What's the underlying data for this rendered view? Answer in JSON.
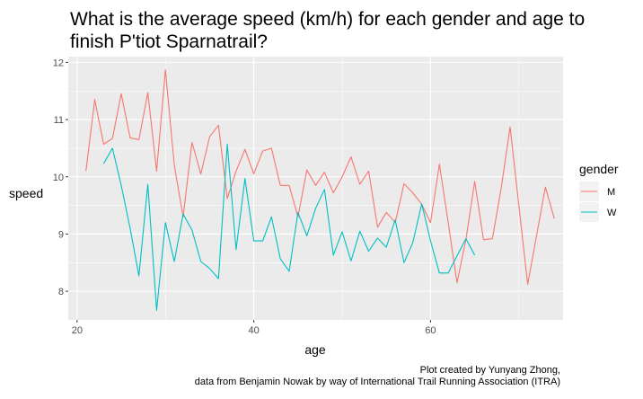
{
  "chart_data": {
    "type": "line",
    "title_lines": [
      "What is the average speed (km/h) for each gender and age to",
      "finish P'tiot Sparnatrail?"
    ],
    "xlabel": "age",
    "ylabel": "speed",
    "xlim": [
      19,
      75
    ],
    "ylim": [
      7.5,
      12.1
    ],
    "x_ticks": [
      20,
      40,
      60
    ],
    "y_ticks": [
      8,
      9,
      10,
      11,
      12
    ],
    "grid": true,
    "legend": {
      "title": "gender",
      "position": "right",
      "entries": [
        {
          "label": "M",
          "color": "#F8766D"
        },
        {
          "label": "W",
          "color": "#00BFC4"
        }
      ]
    },
    "series": [
      {
        "name": "M",
        "color": "#F8766D",
        "points": [
          [
            21,
            10.1
          ],
          [
            22,
            11.35
          ],
          [
            23,
            10.57
          ],
          [
            24,
            10.67
          ],
          [
            25,
            11.45
          ],
          [
            26,
            10.68
          ],
          [
            27,
            10.65
          ],
          [
            28,
            11.47
          ],
          [
            29,
            10.1
          ],
          [
            30,
            11.87
          ],
          [
            31,
            10.2
          ],
          [
            32,
            9.3
          ],
          [
            33,
            10.6
          ],
          [
            34,
            10.05
          ],
          [
            35,
            10.7
          ],
          [
            36,
            10.9
          ],
          [
            37,
            9.62
          ],
          [
            38,
            10.1
          ],
          [
            39,
            10.48
          ],
          [
            40,
            10.05
          ],
          [
            41,
            10.45
          ],
          [
            42,
            10.5
          ],
          [
            43,
            9.85
          ],
          [
            44,
            9.85
          ],
          [
            45,
            9.3
          ],
          [
            46,
            10.12
          ],
          [
            47,
            9.85
          ],
          [
            48,
            10.08
          ],
          [
            49,
            9.72
          ],
          [
            50,
            10.0
          ],
          [
            51,
            10.35
          ],
          [
            52,
            9.87
          ],
          [
            53,
            10.1
          ],
          [
            54,
            9.12
          ],
          [
            55,
            9.38
          ],
          [
            56,
            9.2
          ],
          [
            57,
            9.88
          ],
          [
            58,
            9.72
          ],
          [
            59,
            9.52
          ],
          [
            60,
            9.2
          ],
          [
            61,
            10.22
          ],
          [
            62,
            9.2
          ],
          [
            63,
            8.15
          ],
          [
            64,
            8.9
          ],
          [
            65,
            9.92
          ],
          [
            66,
            8.9
          ],
          [
            67,
            8.92
          ],
          [
            68,
            9.8
          ],
          [
            69,
            10.87
          ],
          [
            71,
            8.12
          ],
          [
            73,
            9.82
          ],
          [
            74,
            9.27
          ]
        ]
      },
      {
        "name": "W",
        "color": "#00BFC4",
        "points": [
          [
            23,
            10.23
          ],
          [
            24,
            10.5
          ],
          [
            25,
            9.85
          ],
          [
            26,
            9.1
          ],
          [
            27,
            8.27
          ],
          [
            28,
            9.87
          ],
          [
            29,
            7.67
          ],
          [
            30,
            9.2
          ],
          [
            31,
            8.52
          ],
          [
            32,
            9.35
          ],
          [
            33,
            9.07
          ],
          [
            34,
            8.52
          ],
          [
            35,
            8.4
          ],
          [
            36,
            8.22
          ],
          [
            37,
            10.57
          ],
          [
            38,
            8.73
          ],
          [
            39,
            9.97
          ],
          [
            40,
            8.88
          ],
          [
            41,
            8.88
          ],
          [
            42,
            9.3
          ],
          [
            43,
            8.57
          ],
          [
            44,
            8.35
          ],
          [
            45,
            9.38
          ],
          [
            46,
            8.97
          ],
          [
            47,
            9.45
          ],
          [
            48,
            9.78
          ],
          [
            49,
            8.63
          ],
          [
            50,
            9.04
          ],
          [
            51,
            8.53
          ],
          [
            52,
            9.05
          ],
          [
            53,
            8.7
          ],
          [
            54,
            8.93
          ],
          [
            55,
            8.77
          ],
          [
            56,
            9.25
          ],
          [
            57,
            8.5
          ],
          [
            58,
            8.85
          ],
          [
            59,
            9.53
          ],
          [
            60,
            8.88
          ],
          [
            61,
            8.32
          ],
          [
            62,
            8.32
          ],
          [
            63,
            8.62
          ],
          [
            64,
            8.92
          ],
          [
            65,
            8.63
          ]
        ]
      }
    ],
    "caption_lines": [
      "Plot created by Yunyang Zhong,",
      "data from Benjamin Nowak by way of International Trail Running Association (ITRA)"
    ]
  }
}
